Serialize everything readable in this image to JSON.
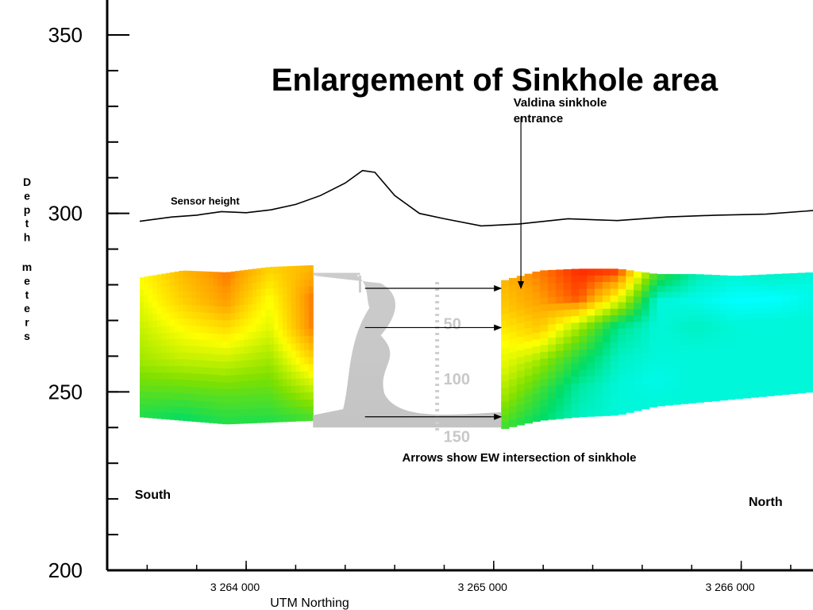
{
  "chart_data": {
    "type": "heatmap",
    "title": "Enlargement of Sinkhole area",
    "ylabel": "Depth meters",
    "xlabel": "UTM Northing",
    "ylim": [
      200,
      360
    ],
    "xlim": [
      3263570,
      3266290
    ],
    "y_ticks": [
      {
        "value": 350,
        "label": "350"
      },
      {
        "value": 300,
        "label": "300"
      },
      {
        "value": 250,
        "label": "250"
      },
      {
        "value": 200,
        "label": "200"
      }
    ],
    "y_minor_step": 10,
    "x_ticks": [
      {
        "value": 3264000,
        "label": "3 264 000"
      },
      {
        "value": 3265000,
        "label": "3 265 000"
      },
      {
        "value": 3266000,
        "label": "3 266 000"
      }
    ],
    "x_minor_step": 200,
    "sensor_height": {
      "label": "Sensor height",
      "points": [
        [
          3263570,
          297.8
        ],
        [
          3263700,
          299
        ],
        [
          3263800,
          299.5
        ],
        [
          3263900,
          300.5
        ],
        [
          3264000,
          300.2
        ],
        [
          3264100,
          301
        ],
        [
          3264200,
          302.5
        ],
        [
          3264300,
          305
        ],
        [
          3264400,
          308.5
        ],
        [
          3264470,
          312
        ],
        [
          3264520,
          311.5
        ],
        [
          3264600,
          305
        ],
        [
          3264700,
          300
        ],
        [
          3264800,
          298.5
        ],
        [
          3264950,
          296.5
        ],
        [
          3265100,
          297
        ],
        [
          3265300,
          298.5
        ],
        [
          3265500,
          298
        ],
        [
          3265700,
          299
        ],
        [
          3265900,
          299.5
        ],
        [
          3266100,
          299.8
        ],
        [
          3266290,
          300.8
        ]
      ]
    },
    "color_scale": [
      "#00ffff",
      "#00dd66",
      "#7fe000",
      "#ffff00",
      "#ffa000",
      "#ff0000"
    ],
    "resistivity_sections": [
      {
        "name": "south",
        "x_range": [
          3263570,
          3264270
        ],
        "top": [
          282,
          284,
          283.5,
          285,
          285.5
        ],
        "bottom": [
          243,
          242,
          241,
          241.5,
          242
        ],
        "rows": [
          [
            0.6,
            0.75,
            0.85,
            0.7,
            0.75
          ],
          [
            0.55,
            0.7,
            0.8,
            0.6,
            0.85
          ],
          [
            0.5,
            0.6,
            0.65,
            0.55,
            0.85
          ],
          [
            0.45,
            0.5,
            0.5,
            0.45,
            0.7
          ],
          [
            0.35,
            0.35,
            0.35,
            0.35,
            0.5
          ],
          [
            0.25,
            0.2,
            0.25,
            0.25,
            0.3
          ]
        ]
      },
      {
        "name": "north",
        "x_range": [
          3265030,
          3266290
        ],
        "top": [
          281,
          284,
          284.5,
          284.5,
          283,
          283,
          282.5,
          283,
          283.5
        ],
        "bottom": [
          239.5,
          242,
          243,
          243.5,
          246,
          247,
          248,
          249,
          250
        ],
        "rows": [
          [
            0.75,
            0.85,
            0.95,
            0.95,
            0.3,
            0.1,
            0.05,
            0.08,
            0.05
          ],
          [
            0.7,
            0.8,
            0.9,
            0.6,
            0.05,
            0.03,
            0.0,
            0.0,
            0.03
          ],
          [
            0.6,
            0.7,
            0.45,
            0.15,
            0.05,
            0.08,
            0.05,
            0.05,
            0.05
          ],
          [
            0.55,
            0.45,
            0.25,
            0.08,
            0.05,
            0.05,
            0.05,
            0.05,
            0.05
          ],
          [
            0.45,
            0.3,
            0.12,
            0.05,
            0.03,
            0.05,
            0.05,
            0.05,
            0.05
          ],
          [
            0.3,
            0.2,
            0.08,
            0.05,
            0.05,
            0.05,
            0.05,
            0.05,
            0.05
          ]
        ]
      }
    ],
    "cave_map": {
      "x_range": [
        3264270,
        3265030
      ],
      "y_range": [
        240,
        283
      ],
      "scale_labels": [
        "50",
        "100",
        "150"
      ]
    },
    "arrows": [
      {
        "from": [
          3264480,
          279
        ],
        "to": [
          3265030,
          279
        ]
      },
      {
        "from": [
          3264480,
          268
        ],
        "to": [
          3265030,
          268
        ]
      },
      {
        "from": [
          3264480,
          243
        ],
        "to": [
          3265030,
          243
        ]
      },
      {
        "from": [
          3265110,
          327
        ],
        "to": [
          3265110,
          279
        ]
      }
    ],
    "annotations": [
      {
        "text": "Valdina sinkhole",
        "x": 3265080,
        "y": 330
      },
      {
        "text": "entrance",
        "x": 3265080,
        "y": 325.5
      },
      {
        "text": "Arrows show EW intersection of sinkhole",
        "x": 3264630,
        "y": 230.5
      },
      {
        "text": "South",
        "x": 3263550,
        "y": 220
      },
      {
        "text": "North",
        "x": 3266030,
        "y": 218
      }
    ]
  }
}
